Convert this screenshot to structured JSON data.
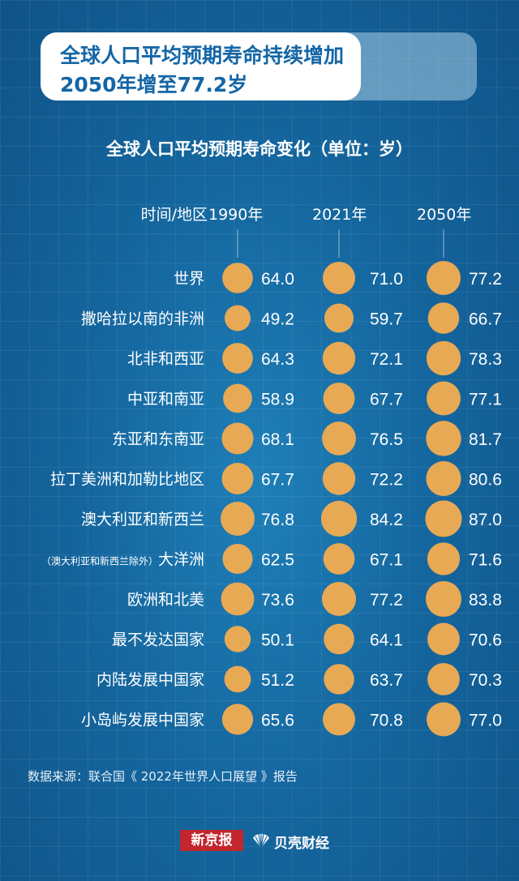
{
  "header": {
    "title_line1": "全球人口平均预期寿命持续增加",
    "title_line2": "2050年增至77.2岁"
  },
  "chart_data": {
    "type": "table",
    "title": "全球人口平均预期寿命变化（单位：岁）",
    "row_header": "时间/地区",
    "columns": [
      "1990年",
      "2021年",
      "2050年"
    ],
    "rows": [
      {
        "label": "世界",
        "values": [
          64.0,
          71.0,
          77.2
        ]
      },
      {
        "label": "撒哈拉以南的非洲",
        "values": [
          49.2,
          59.7,
          66.7
        ]
      },
      {
        "label": "北非和西亚",
        "values": [
          64.3,
          72.1,
          78.3
        ]
      },
      {
        "label": "中亚和南亚",
        "values": [
          58.9,
          67.7,
          77.1
        ]
      },
      {
        "label": "东亚和东南亚",
        "values": [
          68.1,
          76.5,
          81.7
        ]
      },
      {
        "label": "拉丁美洲和加勒比地区",
        "values": [
          67.7,
          72.2,
          80.6
        ]
      },
      {
        "label": "澳大利亚和新西兰",
        "values": [
          76.8,
          84.2,
          87.0
        ]
      },
      {
        "label": "大洋洲",
        "note": "（澳大利亚和新西兰除外）",
        "values": [
          62.5,
          67.1,
          71.6
        ]
      },
      {
        "label": "欧洲和北美",
        "values": [
          73.6,
          77.2,
          83.8
        ]
      },
      {
        "label": "最不发达国家",
        "values": [
          50.1,
          64.1,
          70.6
        ]
      },
      {
        "label": "内陆发展中国家",
        "values": [
          51.2,
          63.7,
          70.3
        ]
      },
      {
        "label": "小岛屿发展中国家",
        "values": [
          65.6,
          70.8,
          77.0
        ]
      }
    ],
    "colors": {
      "bubble": "#e8a955",
      "text": "#ffffff"
    }
  },
  "footer": {
    "source": "数据来源：联合国《 2022年世界人口展望 》报告",
    "logo_xjb": "新京报",
    "logo_bk": "贝壳财经"
  }
}
